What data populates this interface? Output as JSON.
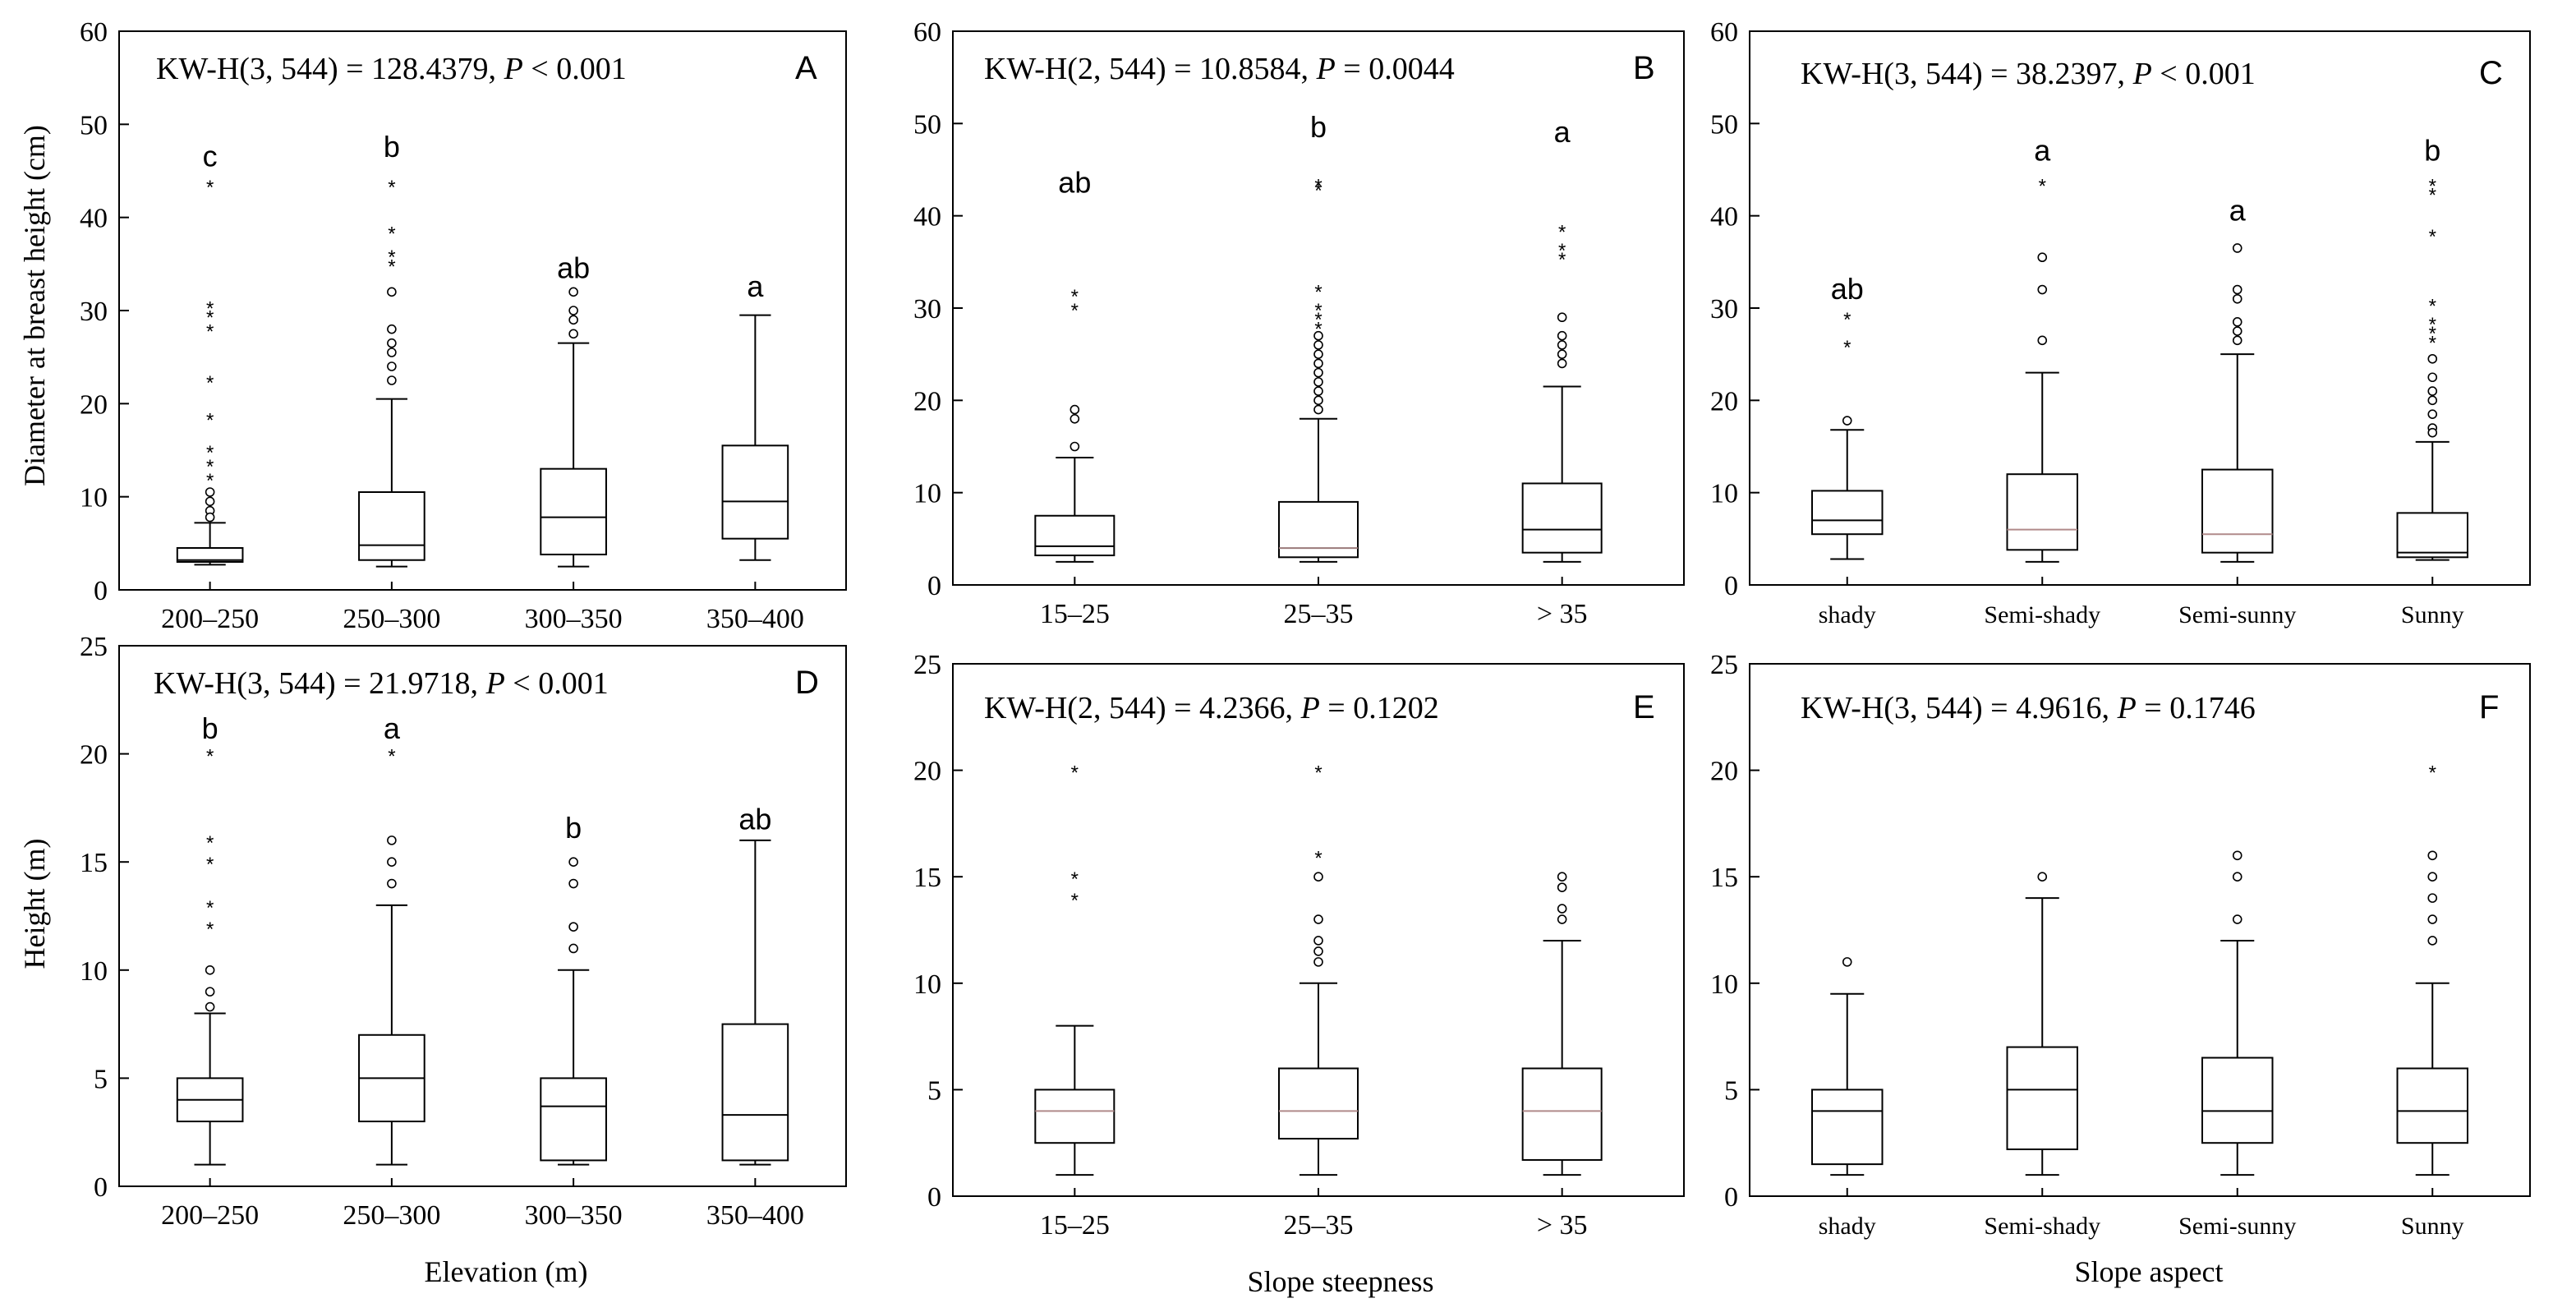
{
  "figure": {
    "row_labels": {
      "dbh": "Diameter at breast height (cm)",
      "height": "Height (m)"
    },
    "column_labels": {
      "elevation": "Elevation (m)",
      "steepness": "Slope steepness",
      "aspect": "Slope aspect"
    }
  },
  "chart_data": [
    {
      "panel": "A",
      "type": "boxplot",
      "stat_prefix": "KW-H(3, 544) = 128.4379, ",
      "stat_p": "P",
      "stat_suffix": " < 0.001",
      "categories": [
        "200–250",
        "250–300",
        "300–350",
        "350–400"
      ],
      "ylim": [
        0,
        60
      ],
      "yticks": [
        0,
        10,
        20,
        30,
        40,
        50,
        60
      ],
      "boxes": [
        {
          "min": 2.7,
          "q1": 3.0,
          "median": 3.2,
          "q3": 4.5,
          "max": 7.2,
          "median_color": "#000000",
          "letter": "c",
          "letter_y": 45.5,
          "letter_font": "sans",
          "outliers": [
            {
              "v": 43.5,
              "s": "*"
            },
            {
              "v": 30.5,
              "s": "*"
            },
            {
              "v": 29.5,
              "s": "*"
            },
            {
              "v": 28.0,
              "s": "*"
            },
            {
              "v": 22.5,
              "s": "*"
            },
            {
              "v": 18.5,
              "s": "*"
            },
            {
              "v": 15.0,
              "s": "*"
            },
            {
              "v": 13.5,
              "s": "*"
            },
            {
              "v": 12.0,
              "s": "*"
            },
            {
              "v": 10.5,
              "s": "o"
            },
            {
              "v": 9.5,
              "s": "o"
            },
            {
              "v": 8.5,
              "s": "o"
            },
            {
              "v": 7.8,
              "s": "o"
            }
          ]
        },
        {
          "min": 2.5,
          "q1": 3.2,
          "median": 4.8,
          "q3": 10.5,
          "max": 20.5,
          "median_color": "#000000",
          "letter": "b",
          "letter_y": 46.5,
          "letter_font": "sans",
          "outliers": [
            {
              "v": 43.5,
              "s": "*"
            },
            {
              "v": 38.5,
              "s": "*"
            },
            {
              "v": 36.0,
              "s": "*"
            },
            {
              "v": 35.0,
              "s": "*"
            },
            {
              "v": 32.0,
              "s": "o"
            },
            {
              "v": 28.0,
              "s": "o"
            },
            {
              "v": 26.5,
              "s": "o"
            },
            {
              "v": 25.5,
              "s": "o"
            },
            {
              "v": 24.0,
              "s": "o"
            },
            {
              "v": 22.5,
              "s": "o"
            }
          ]
        },
        {
          "min": 2.5,
          "q1": 3.8,
          "median": 7.8,
          "q3": 13.0,
          "max": 26.5,
          "median_color": "#000000",
          "letter": "ab",
          "letter_y": 33.5,
          "letter_font": "sans",
          "outliers": [
            {
              "v": 32.0,
              "s": "o"
            },
            {
              "v": 30.0,
              "s": "o"
            },
            {
              "v": 29.0,
              "s": "o"
            },
            {
              "v": 27.5,
              "s": "o"
            }
          ]
        },
        {
          "min": 3.2,
          "q1": 5.5,
          "median": 9.5,
          "q3": 15.5,
          "max": 29.5,
          "median_color": "#000000",
          "letter": "a",
          "letter_y": 31.5,
          "letter_font": "sans",
          "outliers": []
        }
      ]
    },
    {
      "panel": "B",
      "type": "boxplot",
      "stat_prefix": "KW-H(2, 544) = 10.8584, ",
      "stat_p": "P",
      "stat_suffix": " = 0.0044",
      "categories": [
        "15–25",
        "25–35",
        "> 35"
      ],
      "ylim": [
        0,
        60
      ],
      "yticks": [
        0,
        10,
        20,
        30,
        40,
        50,
        60
      ],
      "boxes": [
        {
          "min": 2.5,
          "q1": 3.2,
          "median": 4.2,
          "q3": 7.5,
          "max": 13.8,
          "median_color": "#000000",
          "letter": "ab",
          "letter_y": 42.5,
          "letter_font": "sans",
          "outliers": [
            {
              "v": 31.5,
              "s": "*"
            },
            {
              "v": 30.0,
              "s": "*"
            },
            {
              "v": 19.0,
              "s": "o"
            },
            {
              "v": 18.0,
              "s": "o"
            },
            {
              "v": 15.0,
              "s": "o"
            }
          ]
        },
        {
          "min": 2.5,
          "q1": 3.0,
          "median": 4.0,
          "q3": 9.0,
          "max": 18.0,
          "median_color": "#9a7a7a",
          "letter": "b",
          "letter_y": 48.5,
          "letter_font": "sans",
          "outliers": [
            {
              "v": 43.5,
              "s": "*"
            },
            {
              "v": 43.0,
              "s": "*"
            },
            {
              "v": 32.0,
              "s": "*"
            },
            {
              "v": 30.0,
              "s": "*"
            },
            {
              "v": 29.0,
              "s": "*"
            },
            {
              "v": 28.0,
              "s": "*"
            },
            {
              "v": 27.0,
              "s": "o"
            },
            {
              "v": 26.0,
              "s": "o"
            },
            {
              "v": 25.0,
              "s": "o"
            },
            {
              "v": 24.0,
              "s": "o"
            },
            {
              "v": 23.0,
              "s": "o"
            },
            {
              "v": 22.0,
              "s": "o"
            },
            {
              "v": 21.0,
              "s": "o"
            },
            {
              "v": 20.0,
              "s": "o"
            },
            {
              "v": 19.0,
              "s": "o"
            }
          ]
        },
        {
          "min": 2.5,
          "q1": 3.5,
          "median": 6.0,
          "q3": 11.0,
          "max": 21.5,
          "median_color": "#000000",
          "letter": "a",
          "letter_y": 48.0,
          "letter_font": "sans",
          "outliers": [
            {
              "v": 38.5,
              "s": "*"
            },
            {
              "v": 36.5,
              "s": "*"
            },
            {
              "v": 35.5,
              "s": "*"
            },
            {
              "v": 29.0,
              "s": "o"
            },
            {
              "v": 27.0,
              "s": "o"
            },
            {
              "v": 26.0,
              "s": "o"
            },
            {
              "v": 25.0,
              "s": "o"
            },
            {
              "v": 24.0,
              "s": "o"
            }
          ]
        }
      ]
    },
    {
      "panel": "C",
      "type": "boxplot",
      "stat_prefix": "KW-H(3, 544) = 38.2397, ",
      "stat_p": "P",
      "stat_suffix": " < 0.001",
      "categories": [
        "shady",
        "Semi-shady",
        "Semi-sunny",
        "Sunny"
      ],
      "ylim": [
        0,
        60
      ],
      "yticks": [
        0,
        10,
        20,
        30,
        40,
        50,
        60
      ],
      "boxes": [
        {
          "min": 2.8,
          "q1": 5.5,
          "median": 7.0,
          "q3": 10.2,
          "max": 16.8,
          "median_color": "#000000",
          "letter": "ab",
          "letter_y": 31.0,
          "letter_font": "sans",
          "outliers": [
            {
              "v": 29.0,
              "s": "*"
            },
            {
              "v": 26.0,
              "s": "*"
            },
            {
              "v": 17.8,
              "s": "o"
            }
          ]
        },
        {
          "min": 2.5,
          "q1": 3.8,
          "median": 6.0,
          "q3": 12.0,
          "max": 23.0,
          "median_color": "#b08a8a",
          "letter": "a",
          "letter_y": 46.0,
          "letter_font": "sans",
          "outliers": [
            {
              "v": 43.5,
              "s": "*"
            },
            {
              "v": 35.5,
              "s": "o"
            },
            {
              "v": 32.0,
              "s": "o"
            },
            {
              "v": 26.5,
              "s": "o"
            }
          ]
        },
        {
          "min": 2.5,
          "q1": 3.5,
          "median": 5.5,
          "q3": 12.5,
          "max": 25.0,
          "median_color": "#b08a8a",
          "letter": "a",
          "letter_y": 39.5,
          "letter_font": "sans",
          "outliers": [
            {
              "v": 36.5,
              "s": "o"
            },
            {
              "v": 32.0,
              "s": "o"
            },
            {
              "v": 31.0,
              "s": "o"
            },
            {
              "v": 28.5,
              "s": "o"
            },
            {
              "v": 27.5,
              "s": "o"
            },
            {
              "v": 26.5,
              "s": "o"
            }
          ]
        },
        {
          "min": 2.7,
          "q1": 3.0,
          "median": 3.5,
          "q3": 7.8,
          "max": 15.5,
          "median_color": "#000000",
          "letter": "b",
          "letter_y": 46.0,
          "letter_font": "sans",
          "outliers": [
            {
              "v": 43.5,
              "s": "*"
            },
            {
              "v": 42.5,
              "s": "*"
            },
            {
              "v": 38.0,
              "s": "*"
            },
            {
              "v": 30.5,
              "s": "*"
            },
            {
              "v": 28.5,
              "s": "*"
            },
            {
              "v": 27.5,
              "s": "*"
            },
            {
              "v": 26.5,
              "s": "*"
            },
            {
              "v": 24.5,
              "s": "o"
            },
            {
              "v": 22.5,
              "s": "o"
            },
            {
              "v": 21.0,
              "s": "o"
            },
            {
              "v": 20.0,
              "s": "o"
            },
            {
              "v": 18.5,
              "s": "o"
            },
            {
              "v": 17.0,
              "s": "o"
            },
            {
              "v": 16.5,
              "s": "o"
            }
          ]
        }
      ]
    },
    {
      "panel": "D",
      "type": "boxplot",
      "stat_prefix": "KW-H(3, 544) = 21.9718, ",
      "stat_p": "P",
      "stat_suffix": " < 0.001",
      "categories": [
        "200–250",
        "250–300",
        "300–350",
        "350–400"
      ],
      "ylim": [
        0,
        25
      ],
      "yticks": [
        0,
        5,
        10,
        15,
        20,
        25
      ],
      "boxes": [
        {
          "min": 1.0,
          "q1": 3.0,
          "median": 4.0,
          "q3": 5.0,
          "max": 8.0,
          "median_color": "#000000",
          "letter": "b",
          "letter_y": 20.7,
          "letter_font": "sans",
          "outliers": [
            {
              "v": 20.0,
              "s": "*"
            },
            {
              "v": 16.0,
              "s": "*"
            },
            {
              "v": 15.0,
              "s": "*"
            },
            {
              "v": 13.0,
              "s": "*"
            },
            {
              "v": 12.0,
              "s": "*"
            },
            {
              "v": 10.0,
              "s": "o"
            },
            {
              "v": 9.0,
              "s": "o"
            },
            {
              "v": 8.3,
              "s": "o"
            }
          ]
        },
        {
          "min": 1.0,
          "q1": 3.0,
          "median": 5.0,
          "q3": 7.0,
          "max": 13.0,
          "median_color": "#000000",
          "letter": "a",
          "letter_y": 20.7,
          "letter_font": "sans",
          "outliers": [
            {
              "v": 20.0,
              "s": "*"
            },
            {
              "v": 16.0,
              "s": "o"
            },
            {
              "v": 15.0,
              "s": "o"
            },
            {
              "v": 14.0,
              "s": "o"
            }
          ]
        },
        {
          "min": 1.0,
          "q1": 1.2,
          "median": 3.7,
          "q3": 5.0,
          "max": 10.0,
          "median_color": "#000000",
          "letter": "b",
          "letter_y": 16.1,
          "letter_font": "sans",
          "outliers": [
            {
              "v": 15.0,
              "s": "o"
            },
            {
              "v": 14.0,
              "s": "o"
            },
            {
              "v": 12.0,
              "s": "o"
            },
            {
              "v": 11.0,
              "s": "o"
            }
          ]
        },
        {
          "min": 1.0,
          "q1": 1.2,
          "median": 3.3,
          "q3": 7.5,
          "max": 16.0,
          "median_color": "#000000",
          "letter": "ab",
          "letter_y": 16.5,
          "letter_font": "sans",
          "outliers": []
        }
      ]
    },
    {
      "panel": "E",
      "type": "boxplot",
      "stat_prefix": "KW-H(2, 544) = 4.2366, ",
      "stat_p": "P",
      "stat_suffix": " = 0.1202",
      "categories": [
        "15–25",
        "25–35",
        "> 35"
      ],
      "ylim": [
        0,
        25
      ],
      "yticks": [
        0,
        5,
        10,
        15,
        20,
        25
      ],
      "boxes": [
        {
          "min": 1.0,
          "q1": 2.5,
          "median": 4.0,
          "q3": 5.0,
          "max": 8.0,
          "median_color": "#b08a8a",
          "letter": "",
          "letter_y": 0,
          "letter_font": "sans",
          "outliers": [
            {
              "v": 20.0,
              "s": "*"
            },
            {
              "v": 15.0,
              "s": "*"
            },
            {
              "v": 14.0,
              "s": "*"
            }
          ]
        },
        {
          "min": 1.0,
          "q1": 2.7,
          "median": 4.0,
          "q3": 6.0,
          "max": 10.0,
          "median_color": "#b08a8a",
          "letter": "",
          "letter_y": 0,
          "letter_font": "sans",
          "outliers": [
            {
              "v": 20.0,
              "s": "*"
            },
            {
              "v": 16.0,
              "s": "*"
            },
            {
              "v": 15.0,
              "s": "o"
            },
            {
              "v": 13.0,
              "s": "o"
            },
            {
              "v": 12.0,
              "s": "o"
            },
            {
              "v": 11.5,
              "s": "o"
            },
            {
              "v": 11.0,
              "s": "o"
            }
          ]
        },
        {
          "min": 1.0,
          "q1": 1.7,
          "median": 4.0,
          "q3": 6.0,
          "max": 12.0,
          "median_color": "#b08a8a",
          "letter": "",
          "letter_y": 0,
          "letter_font": "sans",
          "outliers": [
            {
              "v": 15.0,
              "s": "o"
            },
            {
              "v": 14.5,
              "s": "o"
            },
            {
              "v": 13.5,
              "s": "o"
            },
            {
              "v": 13.0,
              "s": "o"
            }
          ]
        }
      ]
    },
    {
      "panel": "F",
      "type": "boxplot",
      "stat_prefix": "KW-H(3, 544) = 4.9616, ",
      "stat_p": "P",
      "stat_suffix": " = 0.1746",
      "categories": [
        "shady",
        "Semi-shady",
        "Semi-sunny",
        "Sunny"
      ],
      "ylim": [
        0,
        25
      ],
      "yticks": [
        0,
        5,
        10,
        15,
        20,
        25
      ],
      "boxes": [
        {
          "min": 1.0,
          "q1": 1.5,
          "median": 4.0,
          "q3": 5.0,
          "max": 9.5,
          "median_color": "#000000",
          "letter": "",
          "letter_y": 0,
          "letter_font": "sans",
          "outliers": [
            {
              "v": 11.0,
              "s": "o"
            }
          ]
        },
        {
          "min": 1.0,
          "q1": 2.2,
          "median": 5.0,
          "q3": 7.0,
          "max": 14.0,
          "median_color": "#000000",
          "letter": "",
          "letter_y": 0,
          "letter_font": "sans",
          "outliers": [
            {
              "v": 15.0,
              "s": "o"
            }
          ]
        },
        {
          "min": 1.0,
          "q1": 2.5,
          "median": 4.0,
          "q3": 6.5,
          "max": 12.0,
          "median_color": "#000000",
          "letter": "",
          "letter_y": 0,
          "letter_font": "sans",
          "outliers": [
            {
              "v": 16.0,
              "s": "o"
            },
            {
              "v": 15.0,
              "s": "o"
            },
            {
              "v": 13.0,
              "s": "o"
            }
          ]
        },
        {
          "min": 1.0,
          "q1": 2.5,
          "median": 4.0,
          "q3": 6.0,
          "max": 10.0,
          "median_color": "#000000",
          "letter": "",
          "letter_y": 0,
          "letter_font": "sans",
          "outliers": [
            {
              "v": 20.0,
              "s": "*"
            },
            {
              "v": 16.0,
              "s": "o"
            },
            {
              "v": 15.0,
              "s": "o"
            },
            {
              "v": 14.0,
              "s": "o"
            },
            {
              "v": 13.0,
              "s": "o"
            },
            {
              "v": 12.0,
              "s": "o"
            }
          ]
        }
      ]
    }
  ]
}
